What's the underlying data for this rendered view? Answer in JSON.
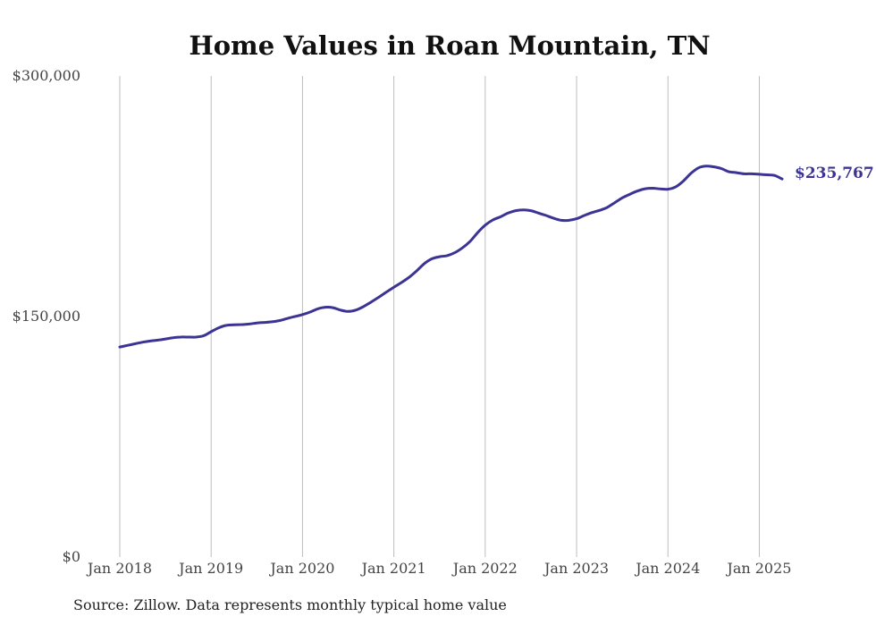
{
  "chart_data": {
    "type": "line",
    "title": "Home Values in Roan Mountain, TN",
    "xlabel": "",
    "ylabel": "",
    "x_ticks": [
      "Jan 2018",
      "Jan 2019",
      "Jan 2020",
      "Jan 2021",
      "Jan 2022",
      "Jan 2023",
      "Jan 2024",
      "Jan 2025"
    ],
    "y_ticks": [
      "$0",
      "$150,000",
      "$300,000"
    ],
    "y_tick_values": [
      0,
      150000,
      300000
    ],
    "ylim": [
      0,
      300000
    ],
    "xlim": [
      "2018-01",
      "2025-04"
    ],
    "grid": "vertical",
    "color": "#3b3494",
    "end_label": "$235,767",
    "series": [
      {
        "x": [
          "2018-01",
          "2018-02",
          "2018-03",
          "2018-04",
          "2018-05",
          "2018-06",
          "2018-07",
          "2018-08",
          "2018-09",
          "2018-10",
          "2018-11",
          "2018-12",
          "2019-01",
          "2019-02",
          "2019-03",
          "2019-04",
          "2019-05",
          "2019-06",
          "2019-07",
          "2019-08",
          "2019-09",
          "2019-10",
          "2019-11",
          "2019-12",
          "2020-01",
          "2020-02",
          "2020-03",
          "2020-04",
          "2020-05",
          "2020-06",
          "2020-07",
          "2020-08",
          "2020-09",
          "2020-10",
          "2020-11",
          "2020-12",
          "2021-01",
          "2021-02",
          "2021-03",
          "2021-04",
          "2021-05",
          "2021-06",
          "2021-07",
          "2021-08",
          "2021-09",
          "2021-10",
          "2021-11",
          "2021-12",
          "2022-01",
          "2022-02",
          "2022-03",
          "2022-04",
          "2022-05",
          "2022-06",
          "2022-07",
          "2022-08",
          "2022-09",
          "2022-10",
          "2022-11",
          "2022-12",
          "2023-01",
          "2023-02",
          "2023-03",
          "2023-04",
          "2023-05",
          "2023-06",
          "2023-07",
          "2023-08",
          "2023-09",
          "2023-10",
          "2023-11",
          "2023-12",
          "2024-01",
          "2024-02",
          "2024-03",
          "2024-04",
          "2024-05",
          "2024-06",
          "2024-07",
          "2024-08",
          "2024-09",
          "2024-10",
          "2024-11",
          "2024-12",
          "2025-01",
          "2025-02",
          "2025-03",
          "2025-04"
        ],
        "values": [
          131000,
          132000,
          133000,
          134000,
          134700,
          135300,
          136000,
          136800,
          137200,
          137200,
          137200,
          138000,
          140500,
          143000,
          144500,
          144800,
          145000,
          145300,
          146000,
          146300,
          146700,
          147500,
          148800,
          150000,
          151200,
          152800,
          154800,
          155800,
          155500,
          154000,
          153200,
          154000,
          156200,
          159000,
          162000,
          165200,
          168300,
          171200,
          174500,
          178500,
          183000,
          186000,
          187300,
          188000,
          189800,
          192800,
          196800,
          202300,
          207000,
          210200,
          212200,
          214500,
          216000,
          216500,
          216000,
          214500,
          213000,
          211300,
          210000,
          210000,
          211000,
          213000,
          214800,
          216200,
          218000,
          221000,
          224000,
          226300,
          228300,
          229700,
          230000,
          229600,
          229400,
          230800,
          234400,
          239200,
          242700,
          243800,
          243400,
          242300,
          240300,
          239700,
          239000,
          239000,
          238700,
          238400,
          238000,
          235767
        ]
      }
    ]
  },
  "source": "Source: Zillow. Data represents monthly typical home value"
}
